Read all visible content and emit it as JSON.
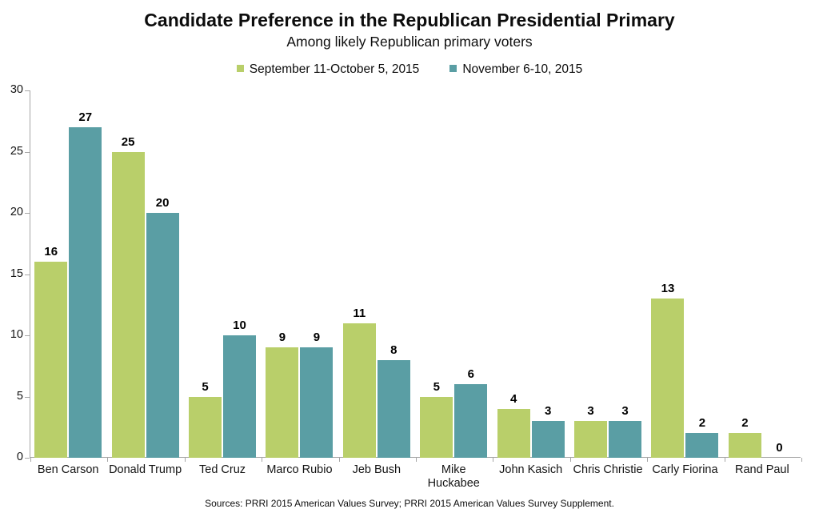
{
  "header": {
    "title": "Candidate Preference in the Republican Presidential Primary",
    "subtitle": "Among likely Republican primary voters"
  },
  "legend": [
    {
      "label": "September 11-October 5, 2015",
      "color": "#b9cf6a"
    },
    {
      "label": "November 6-10, 2015",
      "color": "#5a9ea4"
    }
  ],
  "footer": {
    "source": "Sources: PRRI 2015 American Values Survey; PRRI 2015 American Values Survey Supplement."
  },
  "colors": {
    "axis": "#a6a6a6",
    "series_september": "#b9cf6a",
    "series_november": "#5a9ea4"
  },
  "chart_data": {
    "type": "bar",
    "title": "Candidate Preference in the Republican Presidential Primary",
    "subtitle": "Among likely Republican primary voters",
    "categories": [
      "Ben Carson",
      "Donald Trump",
      "Ted Cruz",
      "Marco Rubio",
      "Jeb Bush",
      "Mike Huckabee",
      "John Kasich",
      "Chris Christie",
      "Carly Fiorina",
      "Rand Paul"
    ],
    "two_line_categories": [
      "Mike Huckabee"
    ],
    "series": [
      {
        "name": "September 11-October 5, 2015",
        "color": "#b9cf6a",
        "values": [
          16,
          25,
          5,
          9,
          11,
          5,
          4,
          3,
          13,
          2
        ]
      },
      {
        "name": "November 6-10, 2015",
        "color": "#5a9ea4",
        "values": [
          27,
          20,
          10,
          9,
          8,
          6,
          3,
          3,
          2,
          0
        ]
      }
    ],
    "xlabel": "",
    "ylabel": "",
    "ylim": [
      0,
      30
    ],
    "yticks": [
      0,
      5,
      10,
      15,
      20,
      25,
      30
    ],
    "grid": false,
    "legend_position": "top",
    "value_labels": true
  }
}
